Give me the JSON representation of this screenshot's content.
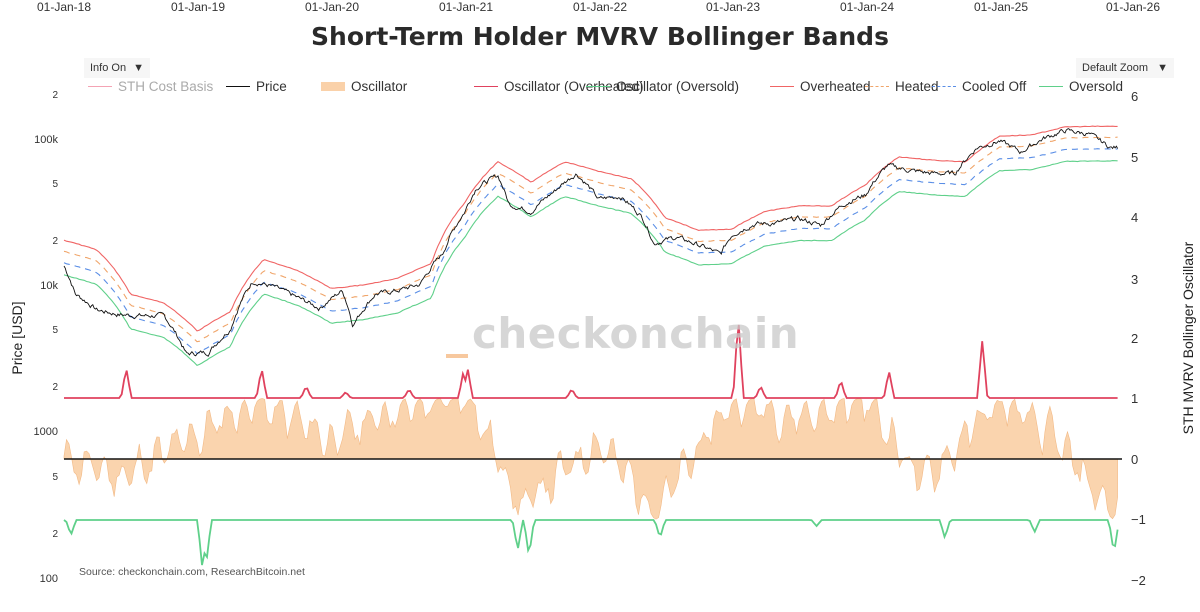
{
  "title": "Short-Term Holder MVRV Bollinger Bands",
  "controls": {
    "info_label": "Info On",
    "zoom_label": "Default Zoom",
    "caret": "▼"
  },
  "watermark": "checkonchain",
  "source": "Source: checkonchain.com, ResearchBitcoin.net",
  "legend": [
    {
      "name": "STH Cost Basis",
      "color": "#f4a3b4",
      "style": "solid",
      "faded": true
    },
    {
      "name": "Price",
      "color": "#111111",
      "style": "solid"
    },
    {
      "name": "Oscillator",
      "color": "#f9c99a",
      "style": "fill"
    },
    {
      "name": "Oscillator (Overheated)",
      "color": "#e0425e",
      "style": "solid"
    },
    {
      "name": "Oscillator (Oversold)",
      "color": "#5fd08a",
      "style": "solid"
    },
    {
      "name": "Overheated",
      "color": "#f06565",
      "style": "solid"
    },
    {
      "name": "Heated",
      "color": "#f0a56a",
      "style": "dash"
    },
    {
      "name": "Cooled Off",
      "color": "#5a8ee6",
      "style": "dash"
    },
    {
      "name": "Oversold",
      "color": "#5fd08a",
      "style": "solid"
    }
  ],
  "axes": {
    "left_title": "Price [USD]",
    "right_title": "STH MVRV Bollinger Oscillator",
    "left_ticks": [
      "100k",
      "5",
      "2",
      "10k",
      "5",
      "2",
      "1000",
      "5",
      "2",
      "100"
    ],
    "left_top_tick": "2",
    "right_ticks": [
      "6",
      "5",
      "4",
      "3",
      "2",
      "1",
      "0",
      "−1",
      "−2"
    ],
    "x_ticks": [
      "01-Jan-18",
      "01-Jan-19",
      "01-Jan-20",
      "01-Jan-21",
      "01-Jan-22",
      "01-Jan-23",
      "01-Jan-24",
      "01-Jan-25",
      "01-Jan-26"
    ]
  },
  "chart_data": {
    "type": "line",
    "title": "Short-Term Holder MVRV Bollinger Bands",
    "xlabel": "",
    "ylabel_left": "Price [USD]",
    "ylabel_right": "STH MVRV Bollinger Oscillator",
    "y_left_scale": "log",
    "y_left_range": [
      100,
      200000
    ],
    "y_right_range": [
      -2,
      6
    ],
    "x_range": [
      "2018-01-01",
      "2026-01-01"
    ],
    "grid": false,
    "legend_position": "top",
    "series": [
      {
        "name": "Price",
        "x": [
          "2018-01",
          "2018-02",
          "2018-04",
          "2018-06",
          "2018-08",
          "2018-10",
          "2018-12",
          "2019-02",
          "2019-04",
          "2019-06",
          "2019-08",
          "2019-10",
          "2019-12",
          "2020-02",
          "2020-03",
          "2020-05",
          "2020-07",
          "2020-09",
          "2020-11",
          "2021-01",
          "2021-02",
          "2021-04",
          "2021-05",
          "2021-07",
          "2021-09",
          "2021-11",
          "2022-01",
          "2022-03",
          "2022-05",
          "2022-06",
          "2022-08",
          "2022-10",
          "2022-12",
          "2023-01",
          "2023-03",
          "2023-05",
          "2023-07",
          "2023-09",
          "2023-11",
          "2024-01",
          "2024-03",
          "2024-05",
          "2024-07",
          "2024-09",
          "2024-11",
          "2025-01",
          "2025-03",
          "2025-05",
          "2025-07",
          "2025-09",
          "2025-11"
        ],
        "values": [
          14000,
          9000,
          7000,
          6500,
          6400,
          6400,
          3500,
          3600,
          5200,
          11000,
          10000,
          8500,
          7200,
          9500,
          5500,
          9000,
          9500,
          10500,
          17000,
          33000,
          48000,
          58000,
          37000,
          33000,
          45000,
          60000,
          40000,
          42000,
          30000,
          20000,
          22000,
          19500,
          16800,
          23000,
          27000,
          27500,
          29500,
          26500,
          37000,
          43000,
          68000,
          63000,
          60000,
          60000,
          90000,
          100000,
          84000,
          104000,
          118000,
          112000,
          90000
        ]
      },
      {
        "name": "Overheated",
        "x": [
          "2018-01",
          "2018-04",
          "2018-07",
          "2018-10",
          "2019-01",
          "2019-04",
          "2019-07",
          "2019-10",
          "2020-01",
          "2020-04",
          "2020-07",
          "2020-10",
          "2021-01",
          "2021-04",
          "2021-07",
          "2021-10",
          "2022-01",
          "2022-04",
          "2022-07",
          "2022-10",
          "2023-01",
          "2023-04",
          "2023-07",
          "2023-10",
          "2024-01",
          "2024-04",
          "2024-07",
          "2024-10",
          "2025-01",
          "2025-04",
          "2025-07",
          "2025-10"
        ],
        "values": [
          21000,
          18000,
          9000,
          7800,
          5000,
          6800,
          15500,
          13000,
          9800,
          10400,
          11500,
          14500,
          38000,
          72000,
          52000,
          72000,
          62000,
          55000,
          30000,
          24500,
          25000,
          33000,
          36000,
          36000,
          50000,
          78000,
          74000,
          72000,
          108000,
          110000,
          125000,
          126000
        ]
      },
      {
        "name": "Oscillator",
        "x": [
          "2018-01",
          "2018-06",
          "2019-01",
          "2019-06",
          "2020-01",
          "2020-06",
          "2021-01",
          "2021-06",
          "2022-01",
          "2022-06",
          "2023-01",
          "2023-06",
          "2024-01",
          "2024-06",
          "2025-01",
          "2025-06",
          "2025-11"
        ],
        "values": [
          0,
          -0.3,
          0.4,
          1.0,
          0.3,
          0.8,
          1.1,
          -0.8,
          0.3,
          -0.9,
          1.0,
          0.7,
          1.0,
          -0.4,
          1.0,
          0.3,
          -0.9
        ]
      },
      {
        "name": "Oscillator (Overheated)",
        "x": [
          "2018-01",
          "2018-07",
          "2019-05",
          "2021-01",
          "2023-01",
          "2024-12",
          "2025-11"
        ],
        "values": [
          1,
          1,
          1.4,
          1.5,
          2.3,
          1.9,
          1
        ]
      },
      {
        "name": "Oscillator (Oversold)",
        "x": [
          "2018-01",
          "2019-01",
          "2021-06",
          "2022-06",
          "2025-11"
        ],
        "values": [
          -1,
          -1.8,
          -1.55,
          -1.2,
          -1.5
        ]
      }
    ]
  }
}
